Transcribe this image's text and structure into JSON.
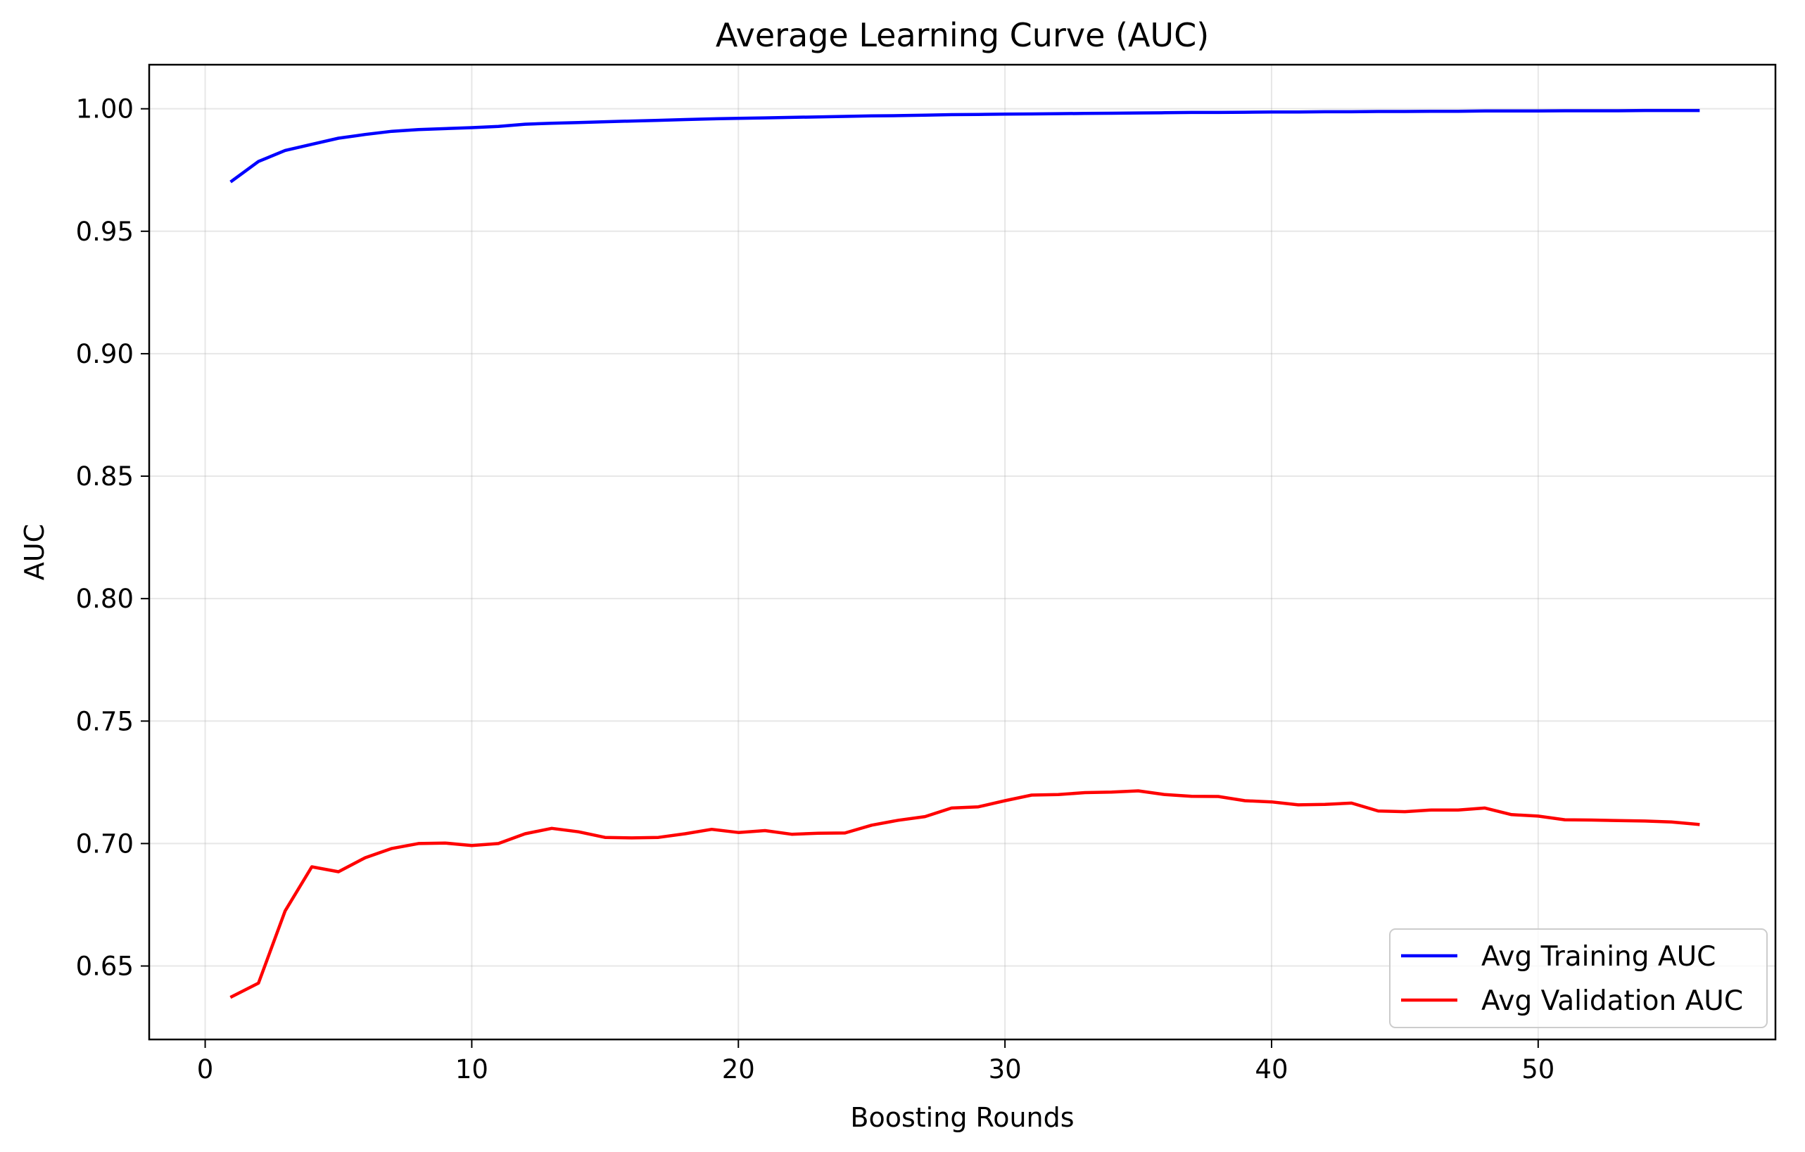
{
  "chart_data": {
    "type": "line",
    "title": "Average Learning Curve (AUC)",
    "xlabel": "Boosting Rounds",
    "ylabel": "AUC",
    "xlim": [
      -2.1,
      58.9
    ],
    "ylim": [
      0.62,
      1.018
    ],
    "xticks": [
      0,
      10,
      20,
      30,
      40,
      50
    ],
    "yticks": [
      0.65,
      0.7,
      0.75,
      0.8,
      0.85,
      0.9,
      0.95,
      1.0
    ],
    "ytick_labels": [
      "0.65",
      "0.70",
      "0.75",
      "0.80",
      "0.85",
      "0.90",
      "0.95",
      "1.00"
    ],
    "grid": true,
    "legend_position": "lower-right",
    "x": [
      1,
      2,
      3,
      4,
      5,
      6,
      7,
      8,
      9,
      10,
      11,
      12,
      13,
      14,
      15,
      16,
      17,
      18,
      19,
      20,
      21,
      22,
      23,
      24,
      25,
      26,
      27,
      28,
      29,
      30,
      31,
      32,
      33,
      34,
      35,
      36,
      37,
      38,
      39,
      40,
      41,
      42,
      43,
      44,
      45,
      46,
      47,
      48,
      49,
      50,
      51,
      52,
      53,
      54,
      55,
      56
    ],
    "series": [
      {
        "name": "Avg Training AUC",
        "color": "#0000ff",
        "values": [
          0.9705,
          0.9785,
          0.983,
          0.9855,
          0.988,
          0.9895,
          0.9908,
          0.9915,
          0.9919,
          0.9923,
          0.9928,
          0.9937,
          0.9941,
          0.9944,
          0.9947,
          0.995,
          0.9953,
          0.9956,
          0.9959,
          0.9961,
          0.9963,
          0.9965,
          0.9967,
          0.9969,
          0.9971,
          0.9972,
          0.9974,
          0.9976,
          0.9977,
          0.9978,
          0.9979,
          0.998,
          0.9981,
          0.9982,
          0.9983,
          0.9984,
          0.9985,
          0.9985,
          0.9986,
          0.9987,
          0.9987,
          0.9988,
          0.9988,
          0.9989,
          0.9989,
          0.999,
          0.999,
          0.9991,
          0.9991,
          0.9991,
          0.9992,
          0.9992,
          0.9992,
          0.9993,
          0.9993,
          0.9993
        ]
      },
      {
        "name": "Avg Validation AUC",
        "color": "#ff0000",
        "values": [
          0.6375,
          0.643,
          0.6725,
          0.6905,
          0.6885,
          0.6942,
          0.698,
          0.7,
          0.7002,
          0.6992,
          0.7,
          0.704,
          0.7062,
          0.7048,
          0.7025,
          0.7023,
          0.7025,
          0.704,
          0.7058,
          0.7045,
          0.7053,
          0.7038,
          0.7042,
          0.7043,
          0.7075,
          0.7095,
          0.711,
          0.7145,
          0.715,
          0.7175,
          0.7198,
          0.72,
          0.7208,
          0.721,
          0.7215,
          0.72,
          0.7193,
          0.7192,
          0.7175,
          0.717,
          0.7158,
          0.716,
          0.7165,
          0.7133,
          0.713,
          0.7137,
          0.7137,
          0.7145,
          0.7118,
          0.7112,
          0.7097,
          0.7096,
          0.7094,
          0.7092,
          0.7088,
          0.7078
        ]
      }
    ]
  }
}
